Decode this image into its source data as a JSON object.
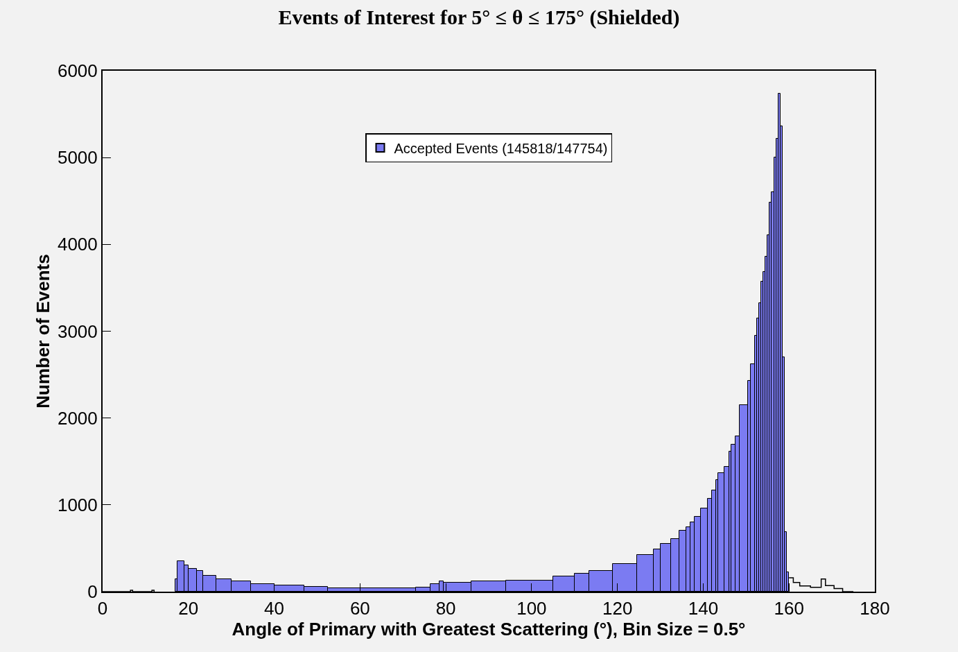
{
  "chart_data": {
    "type": "histogram",
    "title": "Events of Interest for 5° ≤ θ ≤ 175° (Shielded)",
    "xlabel": "Angle of Primary with Greatest Scattering (°), Bin Size = 0.5°",
    "ylabel": "Number of Events",
    "xlim": [
      0,
      180
    ],
    "xticks": [
      0,
      20,
      40,
      60,
      80,
      100,
      120,
      140,
      160,
      180
    ],
    "ylim": [
      0,
      6000
    ],
    "yticks": [
      0,
      1000,
      2000,
      3000,
      4000,
      5000,
      6000
    ],
    "grid": false,
    "legend": "top",
    "bins": [
      17,
      17.5,
      19,
      20,
      22,
      23.5,
      26.5,
      30,
      34.5,
      40,
      47,
      52.5,
      73,
      76.5,
      78.5,
      79.5,
      86,
      94,
      105,
      110,
      113.5,
      119,
      124.5,
      128.5,
      130,
      132.5,
      134.5,
      136,
      137,
      138,
      139.5,
      141,
      142,
      143,
      143.5,
      145,
      146,
      146.5,
      147.5,
      148.5,
      150.5,
      151,
      152,
      152.5,
      153,
      153.5,
      154,
      154.5,
      155,
      155.5,
      156,
      156.5,
      157,
      157.5,
      158,
      158.5,
      159,
      159.5,
      160
    ],
    "series": [
      {
        "name": "Accepted Events (145818/147754)",
        "color": "#7b7bf2",
        "values": [
          145,
          350,
          305,
          260,
          237,
          185,
          145,
          117,
          90,
          72,
          59,
          37,
          50,
          85,
          120,
          105,
          120,
          130,
          178,
          205,
          237,
          322,
          423,
          490,
          550,
          605,
          700,
          740,
          800,
          860,
          960,
          1070,
          1165,
          1290,
          1365,
          1440,
          1610,
          1690,
          1790,
          2150,
          2430,
          2620,
          2950,
          3145,
          3320,
          3570,
          3680,
          3860,
          4110,
          4480,
          4600,
          5000,
          5215,
          5740,
          5360,
          2700,
          690,
          225
        ]
      },
      {
        "type": "step",
        "color": "#000000",
        "x": [
          0,
          6.5,
          7,
          11.5,
          12,
          17,
          160,
          161,
          162.5,
          165,
          167.5,
          168.5,
          170.5,
          172.5,
          175
        ],
        "values": [
          0,
          15,
          0,
          15,
          0,
          null,
          160,
          105,
          65,
          50,
          145,
          70,
          35,
          0,
          0
        ]
      }
    ]
  }
}
